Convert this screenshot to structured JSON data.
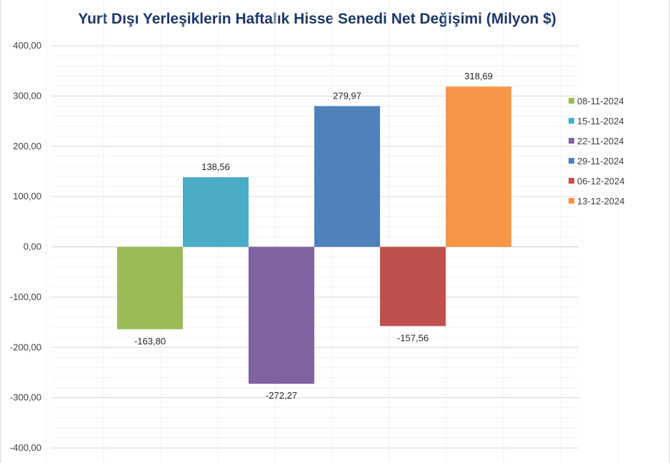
{
  "chart_data": {
    "type": "bar",
    "title": "Yurt Dışı Yerleşiklerin Haftalık Hisse Senedi Net Değişimi (Milyon $)",
    "xlabel": "",
    "ylabel": "",
    "ylim": [
      -400,
      400
    ],
    "y_ticks": [
      400,
      300,
      200,
      100,
      0,
      -100,
      -200,
      -300,
      -400
    ],
    "y_tick_labels": [
      "400,00",
      "300,00",
      "200,00",
      "100,00",
      "0,00",
      "-100,00",
      "-200,00",
      "-300,00",
      "-400,00"
    ],
    "grid": true,
    "legend_position": "right",
    "series": [
      {
        "name": "08-11-2024",
        "value": -163.8,
        "label": "-163,80",
        "color": "#9bbb59"
      },
      {
        "name": "15-11-2024",
        "value": 138.56,
        "label": "138,56",
        "color": "#4bacc6"
      },
      {
        "name": "22-11-2024",
        "value": -272.27,
        "label": "-272,27",
        "color": "#8064a2"
      },
      {
        "name": "29-11-2024",
        "value": 279.97,
        "label": "279,97",
        "color": "#4f81bd"
      },
      {
        "name": "06-12-2024",
        "value": -157.56,
        "label": "-157,56",
        "color": "#c0504d"
      },
      {
        "name": "13-12-2024",
        "value": 318.69,
        "label": "318,69",
        "color": "#f79646"
      }
    ]
  }
}
